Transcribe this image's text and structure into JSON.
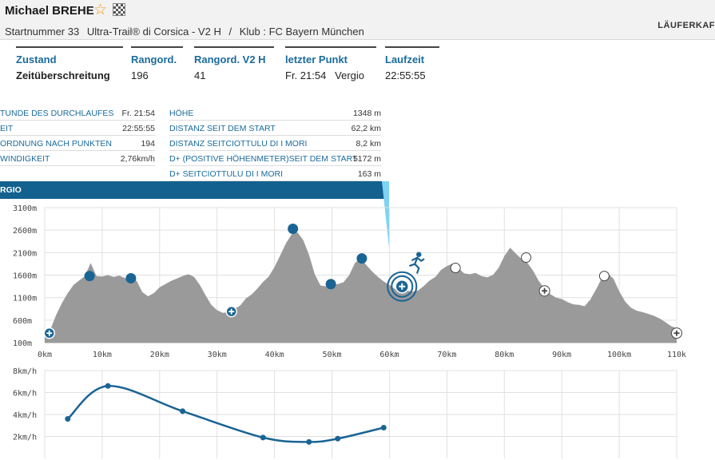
{
  "header": {
    "runner_name": "Michael BREHE",
    "bib": "Startnummer 33",
    "race": "Ultra-Trail® di Corsica - V2 H",
    "separator": "/",
    "club": "Klub : FC Bayern München",
    "right_link": "LÄUFERKAF"
  },
  "stats": [
    {
      "label": "Zustand",
      "value": "Zeitüberschreitung"
    },
    {
      "label": "Rangord.",
      "value": "196"
    },
    {
      "label": "Rangord. V2 H",
      "value": "41"
    },
    {
      "label": "letzter Punkt",
      "value": "Fr. 21:54",
      "value2": "Vergio"
    },
    {
      "label": "Laufzeit",
      "value": "22:55:55"
    }
  ],
  "info_left": [
    {
      "label": "TUNDE DES DURCHLAUFES",
      "value": "Fr. 21:54"
    },
    {
      "label": "EIT",
      "value": "22:55:55"
    },
    {
      "label": "ORDNUNG NACH PUNKTEN",
      "value": "194"
    },
    {
      "label": "WINDIGKEIT",
      "value": "2,76km/h"
    }
  ],
  "info_right": [
    {
      "label": "HÖHE",
      "value": "1348 m"
    },
    {
      "label": "DISTANZ SEIT DEM START",
      "value": "62,2 km"
    },
    {
      "label": "DISTANZ SEITCIOTTULU DI I MORI",
      "value": "8,2 km"
    },
    {
      "label": "D+ (POSITIVE HÖHENMETER)SEIT DEM START",
      "value": "5172 m"
    },
    {
      "label": "D+ SEITCIOTTULU DI I MORI",
      "value": "163 m"
    }
  ],
  "point_banner": "RGIO",
  "colors": {
    "accent": "#1a6b9c",
    "banner": "#12618e",
    "marker": "#1a6494",
    "profile_fill": "#9a9a9a",
    "pointer": "#7dd3f2"
  },
  "icons": {
    "favorite": "star-outline-icon",
    "flag": "checkered-flag-icon",
    "runner": "runner-icon",
    "checkpoint": "checkpoint-marker-icon",
    "aid_station": "plus-circle-icon"
  },
  "chart_data": [
    {
      "type": "area",
      "title": "",
      "xlabel": "",
      "ylabel": "",
      "x_unit": "km",
      "y_unit": "m",
      "xlim": [
        0,
        110
      ],
      "ylim": [
        100,
        3100
      ],
      "x_ticks": [
        "0km",
        "10km",
        "20km",
        "30km",
        "40km",
        "50km",
        "60km",
        "70km",
        "80km",
        "90km",
        "100km",
        "110k"
      ],
      "y_ticks": [
        "100m",
        "600m",
        "1100m",
        "1600m",
        "2100m",
        "2600m",
        "3100m"
      ],
      "grid": true,
      "profile": [
        [
          0,
          280
        ],
        [
          1,
          400
        ],
        [
          2,
          720
        ],
        [
          3,
          980
        ],
        [
          4,
          1200
        ],
        [
          5,
          1380
        ],
        [
          6,
          1480
        ],
        [
          7,
          1580
        ],
        [
          8,
          1870
        ],
        [
          9,
          1580
        ],
        [
          10,
          1570
        ],
        [
          11,
          1600
        ],
        [
          12,
          1560
        ],
        [
          13,
          1590
        ],
        [
          14,
          1530
        ],
        [
          15,
          1520
        ],
        [
          16,
          1470
        ],
        [
          17,
          1220
        ],
        [
          18,
          1130
        ],
        [
          19,
          1200
        ],
        [
          20,
          1330
        ],
        [
          22,
          1470
        ],
        [
          24,
          1580
        ],
        [
          25,
          1620
        ],
        [
          26,
          1560
        ],
        [
          27,
          1380
        ],
        [
          28,
          1150
        ],
        [
          29,
          940
        ],
        [
          30,
          820
        ],
        [
          31,
          760
        ],
        [
          32,
          780
        ],
        [
          33,
          850
        ],
        [
          34,
          920
        ],
        [
          35,
          1080
        ],
        [
          36,
          1170
        ],
        [
          37,
          1300
        ],
        [
          38,
          1450
        ],
        [
          39,
          1570
        ],
        [
          40,
          1780
        ],
        [
          41,
          2040
        ],
        [
          42,
          2310
        ],
        [
          43,
          2510
        ],
        [
          44,
          2550
        ],
        [
          45,
          2380
        ],
        [
          46,
          2050
        ],
        [
          47,
          1620
        ],
        [
          48,
          1370
        ],
        [
          49,
          1350
        ],
        [
          50,
          1380
        ],
        [
          51,
          1400
        ],
        [
          52,
          1440
        ],
        [
          53,
          1600
        ],
        [
          54,
          1870
        ],
        [
          55,
          1980
        ],
        [
          56,
          1820
        ],
        [
          57,
          1680
        ],
        [
          58,
          1560
        ],
        [
          59,
          1460
        ],
        [
          60,
          1380
        ],
        [
          61,
          1290
        ],
        [
          62.2,
          1348
        ],
        [
          63,
          1260
        ],
        [
          64,
          1230
        ],
        [
          65,
          1260
        ],
        [
          66,
          1360
        ],
        [
          67,
          1480
        ],
        [
          68,
          1560
        ],
        [
          69,
          1720
        ],
        [
          70,
          1800
        ],
        [
          71,
          1860
        ],
        [
          72,
          1760
        ],
        [
          73,
          1640
        ],
        [
          74,
          1620
        ],
        [
          75,
          1650
        ],
        [
          76,
          1580
        ],
        [
          77,
          1550
        ],
        [
          78,
          1600
        ],
        [
          79,
          1760
        ],
        [
          80,
          2020
        ],
        [
          81,
          2210
        ],
        [
          82,
          2080
        ],
        [
          83,
          1960
        ],
        [
          84,
          1880
        ],
        [
          85,
          1700
        ],
        [
          86,
          1470
        ],
        [
          87,
          1300
        ],
        [
          88,
          1180
        ],
        [
          89,
          1100
        ],
        [
          90,
          1070
        ],
        [
          91,
          1000
        ],
        [
          92,
          950
        ],
        [
          93,
          940
        ],
        [
          94,
          910
        ],
        [
          95,
          1060
        ],
        [
          96,
          1290
        ],
        [
          97,
          1540
        ],
        [
          98,
          1640
        ],
        [
          99,
          1520
        ],
        [
          100,
          1240
        ],
        [
          101,
          1020
        ],
        [
          102,
          880
        ],
        [
          103,
          810
        ],
        [
          104,
          780
        ],
        [
          105,
          740
        ],
        [
          106,
          700
        ],
        [
          107,
          640
        ],
        [
          108,
          560
        ],
        [
          109,
          470
        ],
        [
          110,
          420
        ]
      ],
      "checkpoints_passed": [
        [
          7.8,
          1580
        ],
        [
          15,
          1530
        ],
        [
          43.2,
          2630
        ],
        [
          49.8,
          1400
        ],
        [
          55.2,
          1970
        ]
      ],
      "checkpoints_upcoming": [
        [
          71.5,
          1760
        ],
        [
          83.8,
          1990
        ],
        [
          97.4,
          1580
        ]
      ],
      "aid_stations_passed": [
        [
          0.8,
          310
        ],
        [
          32.5,
          790
        ]
      ],
      "aid_stations_upcoming": [
        [
          87,
          1250
        ],
        [
          110,
          310
        ]
      ],
      "current_position": {
        "km": 62.2,
        "elevation": 1348,
        "label": "Vergio"
      }
    },
    {
      "type": "line",
      "title": "",
      "xlabel": "",
      "ylabel": "",
      "y_unit": "km/h",
      "ylim": [
        0,
        8
      ],
      "y_ticks": [
        "8km/h",
        "6km/h",
        "4km/h",
        "2km/h"
      ],
      "grid": true,
      "series": [
        {
          "x": [
            4,
            11,
            24,
            38,
            46,
            51,
            59
          ],
          "values": [
            3.6,
            6.6,
            4.3,
            1.9,
            1.5,
            1.8,
            2.8
          ]
        }
      ]
    }
  ]
}
